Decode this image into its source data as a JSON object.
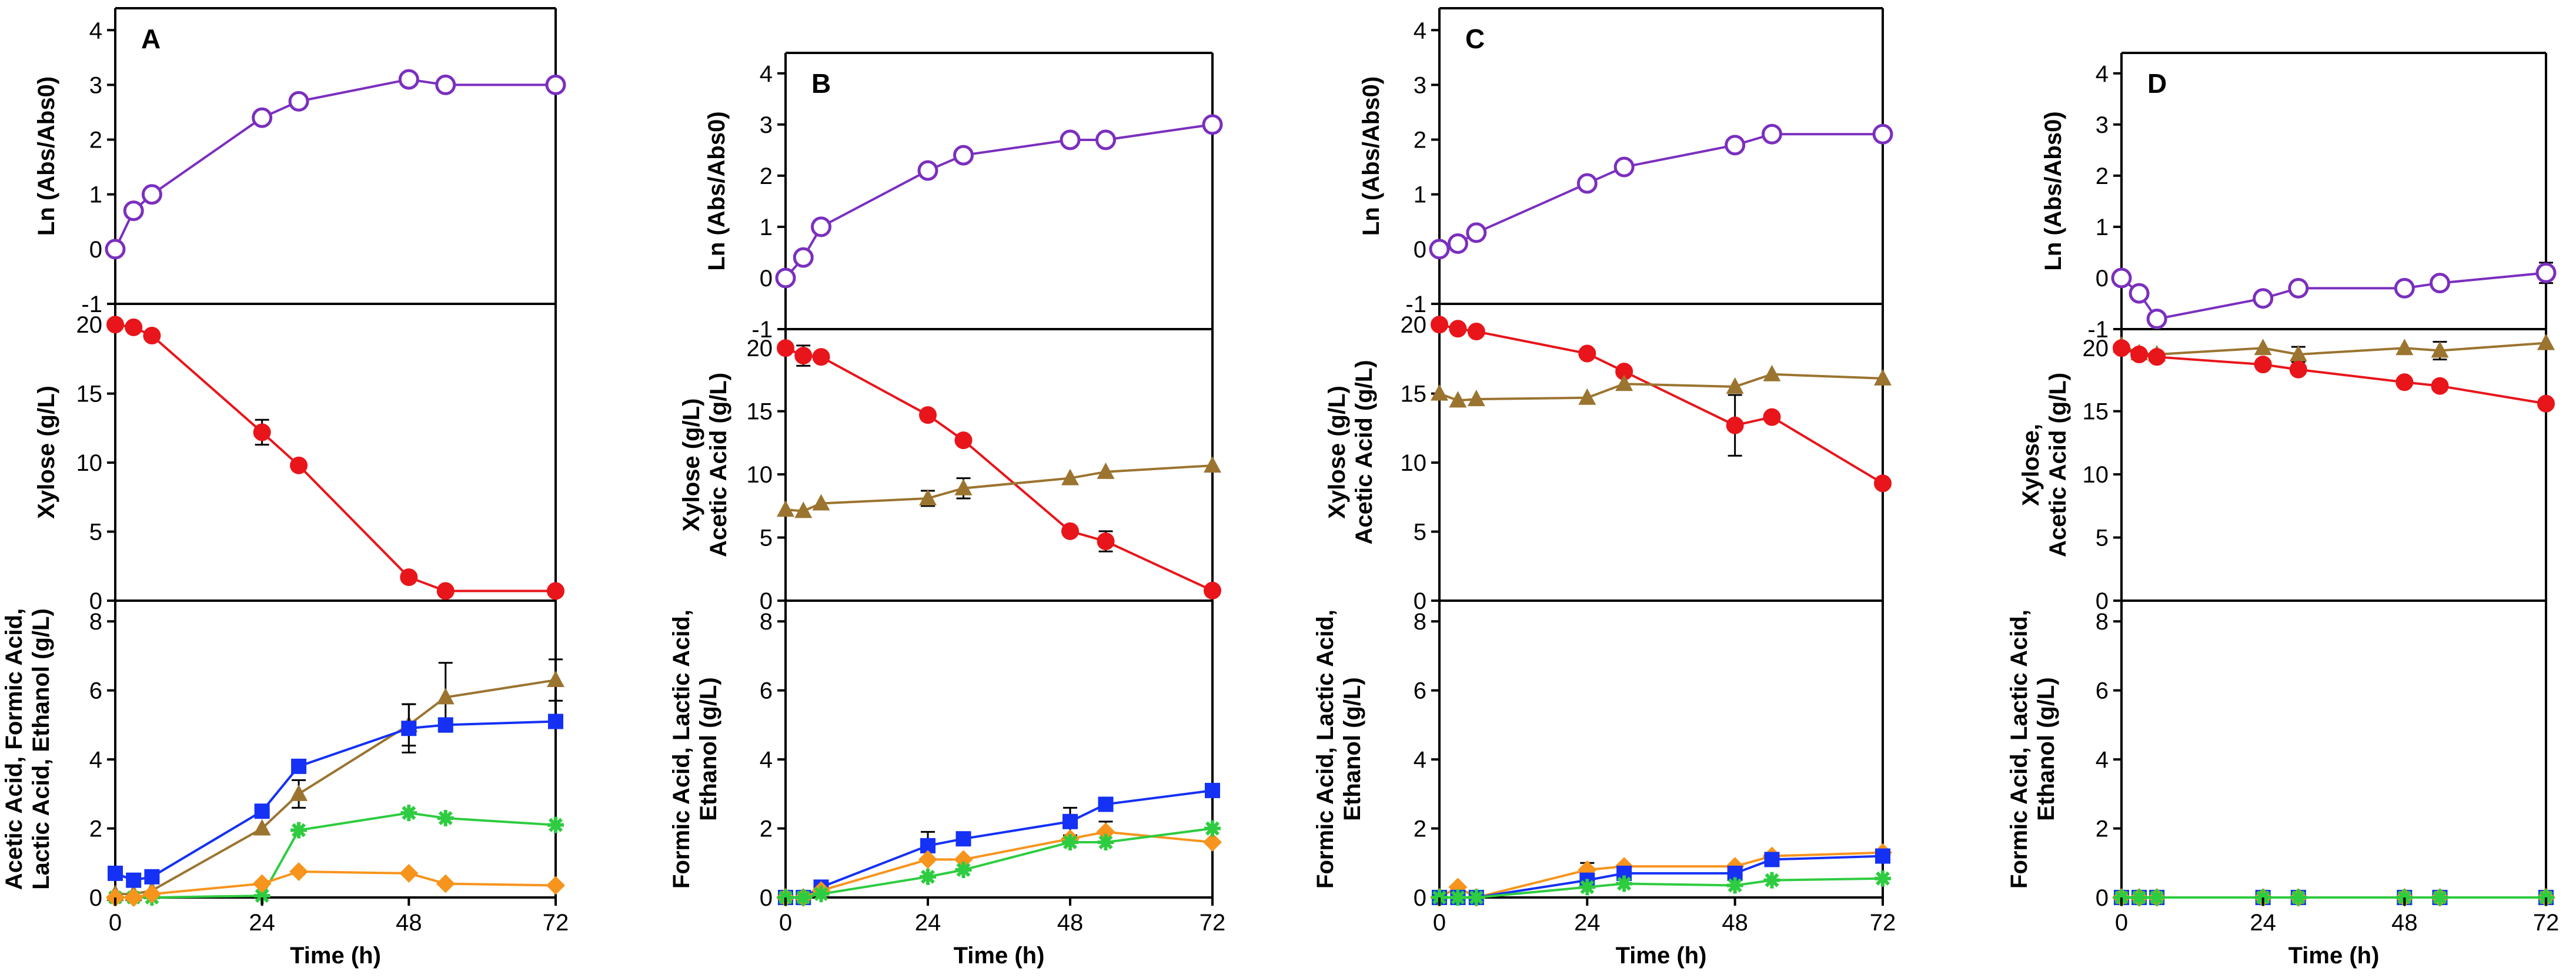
{
  "colors": {
    "purple": "#7B2FBE",
    "red": "#E8151B",
    "brown": "#9B7430",
    "blue": "#1431F5",
    "green": "#2ECC40",
    "orange": "#F7941D"
  },
  "chart_data": [
    {
      "panel": "A",
      "type": "line",
      "x_label": "Time (h)",
      "x_ticks": [
        0,
        24,
        48,
        72
      ],
      "x_range": [
        0,
        72
      ],
      "subplots": [
        {
          "ylabel": [
            "Ln (Abs/Abs0)"
          ],
          "ylim": [
            -1,
            4.4
          ],
          "yticks": [
            -1,
            0,
            1,
            2,
            3,
            4
          ],
          "series": [
            {
              "name": "Ln (Abs/Abs0)",
              "color": "purple",
              "marker": "open-circle",
              "x": [
                0,
                3,
                6,
                24,
                30,
                48,
                54,
                72
              ],
              "y": [
                0,
                0.7,
                1.0,
                2.4,
                2.7,
                3.1,
                3.0,
                3.0
              ]
            }
          ]
        },
        {
          "ylabel": [
            "Xylose (g/L)"
          ],
          "ylim": [
            0,
            21.5
          ],
          "yticks": [
            0,
            5,
            10,
            15,
            20
          ],
          "series": [
            {
              "name": "Xylose",
              "color": "red",
              "marker": "circle",
              "x": [
                0,
                3,
                6,
                24,
                30,
                48,
                54,
                72
              ],
              "y": [
                20.0,
                19.8,
                19.2,
                12.2,
                9.8,
                1.7,
                0.7,
                0.7
              ],
              "err": [
                0,
                0,
                0,
                0.9,
                0,
                0,
                0,
                0
              ]
            }
          ]
        },
        {
          "ylabel": [
            "Acetic Acid, Formic Acid,",
            "Lactic Acid, Ethanol (g/L)"
          ],
          "ylim": [
            0,
            8.6
          ],
          "yticks": [
            0,
            2,
            4,
            6,
            8
          ],
          "series": [
            {
              "name": "Acetic Acid",
              "color": "brown",
              "marker": "triangle",
              "x": [
                0,
                3,
                6,
                24,
                30,
                48,
                54,
                72
              ],
              "y": [
                0.1,
                0.1,
                0.2,
                2.0,
                3.0,
                5.0,
                5.8,
                6.3
              ],
              "err": [
                0,
                0,
                0,
                0,
                0.4,
                0.6,
                1.0,
                0.6
              ]
            },
            {
              "name": "Formic Acid",
              "color": "blue",
              "marker": "square",
              "x": [
                0,
                3,
                6,
                24,
                30,
                48,
                54,
                72
              ],
              "y": [
                0.7,
                0.5,
                0.6,
                2.5,
                3.8,
                4.9,
                5.0,
                5.1
              ],
              "err": [
                0,
                0,
                0,
                0,
                0,
                0.7,
                0,
                0
              ]
            },
            {
              "name": "Lactic Acid",
              "color": "green",
              "marker": "star",
              "x": [
                0,
                3,
                6,
                24,
                30,
                48,
                54,
                72
              ],
              "y": [
                0,
                0,
                0,
                0.05,
                1.95,
                2.45,
                2.3,
                2.1
              ]
            },
            {
              "name": "Ethanol",
              "color": "orange",
              "marker": "diamond",
              "x": [
                0,
                3,
                6,
                24,
                30,
                48,
                54,
                72
              ],
              "y": [
                0,
                0,
                0.1,
                0.4,
                0.75,
                0.7,
                0.4,
                0.35
              ]
            }
          ]
        }
      ]
    },
    {
      "panel": "B",
      "type": "line",
      "x_label": "Time (h)",
      "x_ticks": [
        0,
        24,
        48,
        72
      ],
      "x_range": [
        0,
        72
      ],
      "subplots": [
        {
          "ylabel": [
            "Ln (Abs/Abs0)"
          ],
          "ylim": [
            -1,
            4.4
          ],
          "yticks": [
            -1,
            0,
            1,
            2,
            3,
            4
          ],
          "series": [
            {
              "name": "Ln (Abs/Abs0)",
              "color": "purple",
              "marker": "open-circle",
              "x": [
                0,
                3,
                6,
                24,
                30,
                48,
                54,
                72
              ],
              "y": [
                0,
                0.4,
                1.0,
                2.1,
                2.4,
                2.7,
                2.7,
                3.0
              ]
            }
          ]
        },
        {
          "ylabel": [
            "Xylose (g/L)",
            "Acetic Acid (g/L)"
          ],
          "ylim": [
            0,
            21.5
          ],
          "yticks": [
            0,
            5,
            10,
            15,
            20
          ],
          "series": [
            {
              "name": "Xylose",
              "color": "red",
              "marker": "circle",
              "x": [
                0,
                3,
                6,
                24,
                30,
                48,
                54,
                72
              ],
              "y": [
                20.0,
                19.4,
                19.3,
                14.7,
                12.7,
                5.5,
                4.7,
                0.8
              ],
              "err": [
                0,
                0.8,
                0,
                0,
                0,
                0,
                0.8,
                0
              ]
            },
            {
              "name": "Acetic Acid",
              "color": "brown",
              "marker": "triangle",
              "x": [
                0,
                3,
                6,
                24,
                30,
                48,
                54,
                72
              ],
              "y": [
                7.2,
                7.1,
                7.7,
                8.1,
                8.9,
                9.7,
                10.2,
                10.7
              ],
              "err": [
                0,
                0,
                0,
                0.6,
                0.8,
                0,
                0,
                0
              ]
            }
          ]
        },
        {
          "ylabel": [
            "Formic Acid, Lactic Acid,",
            "Ethanol (g/L)"
          ],
          "ylim": [
            0,
            8.6
          ],
          "yticks": [
            0,
            2,
            4,
            6,
            8
          ],
          "series": [
            {
              "name": "Formic Acid",
              "color": "blue",
              "marker": "square",
              "x": [
                0,
                3,
                6,
                24,
                30,
                48,
                54,
                72
              ],
              "y": [
                0,
                0,
                0.3,
                1.5,
                1.7,
                2.2,
                2.7,
                3.1
              ],
              "err": [
                0,
                0,
                0,
                0.4,
                0,
                0.4,
                0,
                0
              ]
            },
            {
              "name": "Ethanol",
              "color": "orange",
              "marker": "diamond",
              "x": [
                0,
                3,
                6,
                24,
                30,
                48,
                54,
                72
              ],
              "y": [
                0,
                0,
                0.2,
                1.1,
                1.1,
                1.7,
                1.9,
                1.6
              ],
              "err": [
                0,
                0,
                0,
                0,
                0,
                0,
                0.3,
                0
              ]
            },
            {
              "name": "Lactic Acid",
              "color": "green",
              "marker": "star",
              "x": [
                0,
                3,
                6,
                24,
                30,
                48,
                54,
                72
              ],
              "y": [
                0,
                0,
                0.1,
                0.6,
                0.8,
                1.6,
                1.6,
                2.0
              ]
            }
          ]
        }
      ]
    },
    {
      "panel": "C",
      "type": "line",
      "x_label": "Time (h)",
      "x_ticks": [
        0,
        24,
        48,
        72
      ],
      "x_range": [
        0,
        72
      ],
      "subplots": [
        {
          "ylabel": [
            "Ln (Abs/Abs0)"
          ],
          "ylim": [
            -1,
            4.4
          ],
          "yticks": [
            -1,
            0,
            1,
            2,
            3,
            4
          ],
          "series": [
            {
              "name": "Ln (Abs/Abs0)",
              "color": "purple",
              "marker": "open-circle",
              "x": [
                0,
                3,
                6,
                24,
                30,
                48,
                54,
                72
              ],
              "y": [
                0,
                0.1,
                0.3,
                1.2,
                1.5,
                1.9,
                2.1,
                2.1
              ]
            }
          ]
        },
        {
          "ylabel": [
            "Xylose (g/L)",
            "Acetic Acid (g/L)"
          ],
          "ylim": [
            0,
            21.5
          ],
          "yticks": [
            0,
            5,
            10,
            15,
            20
          ],
          "series": [
            {
              "name": "Xylose",
              "color": "red",
              "marker": "circle",
              "x": [
                0,
                3,
                6,
                24,
                30,
                48,
                54,
                72
              ],
              "y": [
                20.0,
                19.7,
                19.5,
                17.9,
                16.6,
                12.7,
                13.3,
                8.5
              ],
              "err": [
                0,
                0,
                0,
                0,
                0,
                2.2,
                0,
                0
              ]
            },
            {
              "name": "Acetic Acid",
              "color": "brown",
              "marker": "triangle",
              "x": [
                0,
                3,
                6,
                24,
                30,
                48,
                54,
                72
              ],
              "y": [
                15.0,
                14.5,
                14.6,
                14.7,
                15.7,
                15.5,
                16.4,
                16.1
              ]
            }
          ]
        },
        {
          "ylabel": [
            "Formic Acid, Lactic Acid,",
            "Ethanol (g/L)"
          ],
          "ylim": [
            0,
            8.6
          ],
          "yticks": [
            0,
            2,
            4,
            6,
            8
          ],
          "series": [
            {
              "name": "Ethanol",
              "color": "orange",
              "marker": "diamond",
              "x": [
                0,
                3,
                6,
                24,
                30,
                48,
                54,
                72
              ],
              "y": [
                0,
                0.3,
                0,
                0.8,
                0.9,
                0.9,
                1.2,
                1.3
              ],
              "err": [
                0,
                0,
                0,
                0.2,
                0,
                0,
                0,
                0
              ]
            },
            {
              "name": "Formic Acid",
              "color": "blue",
              "marker": "square",
              "x": [
                0,
                3,
                6,
                24,
                30,
                48,
                54,
                72
              ],
              "y": [
                0,
                0,
                0,
                0.5,
                0.7,
                0.7,
                1.1,
                1.2
              ]
            },
            {
              "name": "Lactic Acid",
              "color": "green",
              "marker": "star",
              "x": [
                0,
                3,
                6,
                24,
                30,
                48,
                54,
                72
              ],
              "y": [
                0,
                0,
                0,
                0.3,
                0.4,
                0.35,
                0.5,
                0.55
              ]
            }
          ]
        }
      ]
    },
    {
      "panel": "D",
      "type": "line",
      "x_label": "Time (h)",
      "x_ticks": [
        0,
        24,
        48,
        72
      ],
      "x_range": [
        0,
        72
      ],
      "subplots": [
        {
          "ylabel": [
            "Ln (Abs/Abs0)"
          ],
          "ylim": [
            -1,
            4.4
          ],
          "yticks": [
            -1,
            0,
            1,
            2,
            3,
            4
          ],
          "series": [
            {
              "name": "Ln (Abs/Abs0)",
              "color": "purple",
              "marker": "open-circle",
              "x": [
                0,
                3,
                6,
                24,
                30,
                48,
                54,
                72
              ],
              "y": [
                0,
                -0.3,
                -0.8,
                -0.4,
                -0.2,
                -0.2,
                -0.1,
                0.1
              ],
              "err": [
                0,
                0,
                0,
                0,
                0,
                0,
                0,
                0.2
              ]
            }
          ]
        },
        {
          "ylabel": [
            "Xylose,",
            "Acetic Acid (g/L)"
          ],
          "ylim": [
            0,
            21.5
          ],
          "yticks": [
            0,
            5,
            10,
            15,
            20
          ],
          "series": [
            {
              "name": "Acetic Acid",
              "color": "brown",
              "marker": "triangle",
              "x": [
                0,
                3,
                6,
                24,
                30,
                48,
                54,
                72
              ],
              "y": [
                20.2,
                19.6,
                19.5,
                20.0,
                19.5,
                20.0,
                19.8,
                20.4
              ],
              "err": [
                0,
                0,
                0,
                0,
                0.6,
                0,
                0.7,
                0
              ]
            },
            {
              "name": "Xylose",
              "color": "red",
              "marker": "circle",
              "x": [
                0,
                3,
                6,
                24,
                30,
                48,
                54,
                72
              ],
              "y": [
                20.0,
                19.5,
                19.3,
                18.7,
                18.3,
                17.3,
                17.0,
                15.6
              ]
            }
          ]
        },
        {
          "ylabel": [
            "Formic Acid, Lactic Acid,",
            "Ethanol (g/L)"
          ],
          "ylim": [
            0,
            8.6
          ],
          "yticks": [
            0,
            2,
            4,
            6,
            8
          ],
          "series": [
            {
              "name": "Formic Acid",
              "color": "blue",
              "marker": "square",
              "x": [
                0,
                3,
                6,
                24,
                30,
                48,
                54,
                72
              ],
              "y": [
                0,
                0,
                0,
                0,
                0,
                0,
                0,
                0
              ]
            },
            {
              "name": "Ethanol",
              "color": "orange",
              "marker": "diamond",
              "x": [
                0,
                3,
                6,
                24,
                30,
                48,
                54,
                72
              ],
              "y": [
                0,
                0,
                0,
                0,
                0,
                0,
                0,
                0
              ]
            },
            {
              "name": "Lactic Acid",
              "color": "green",
              "marker": "star",
              "x": [
                0,
                3,
                6,
                24,
                30,
                48,
                54,
                72
              ],
              "y": [
                0,
                0,
                0,
                0,
                0,
                0,
                0,
                0
              ]
            }
          ]
        }
      ]
    }
  ]
}
